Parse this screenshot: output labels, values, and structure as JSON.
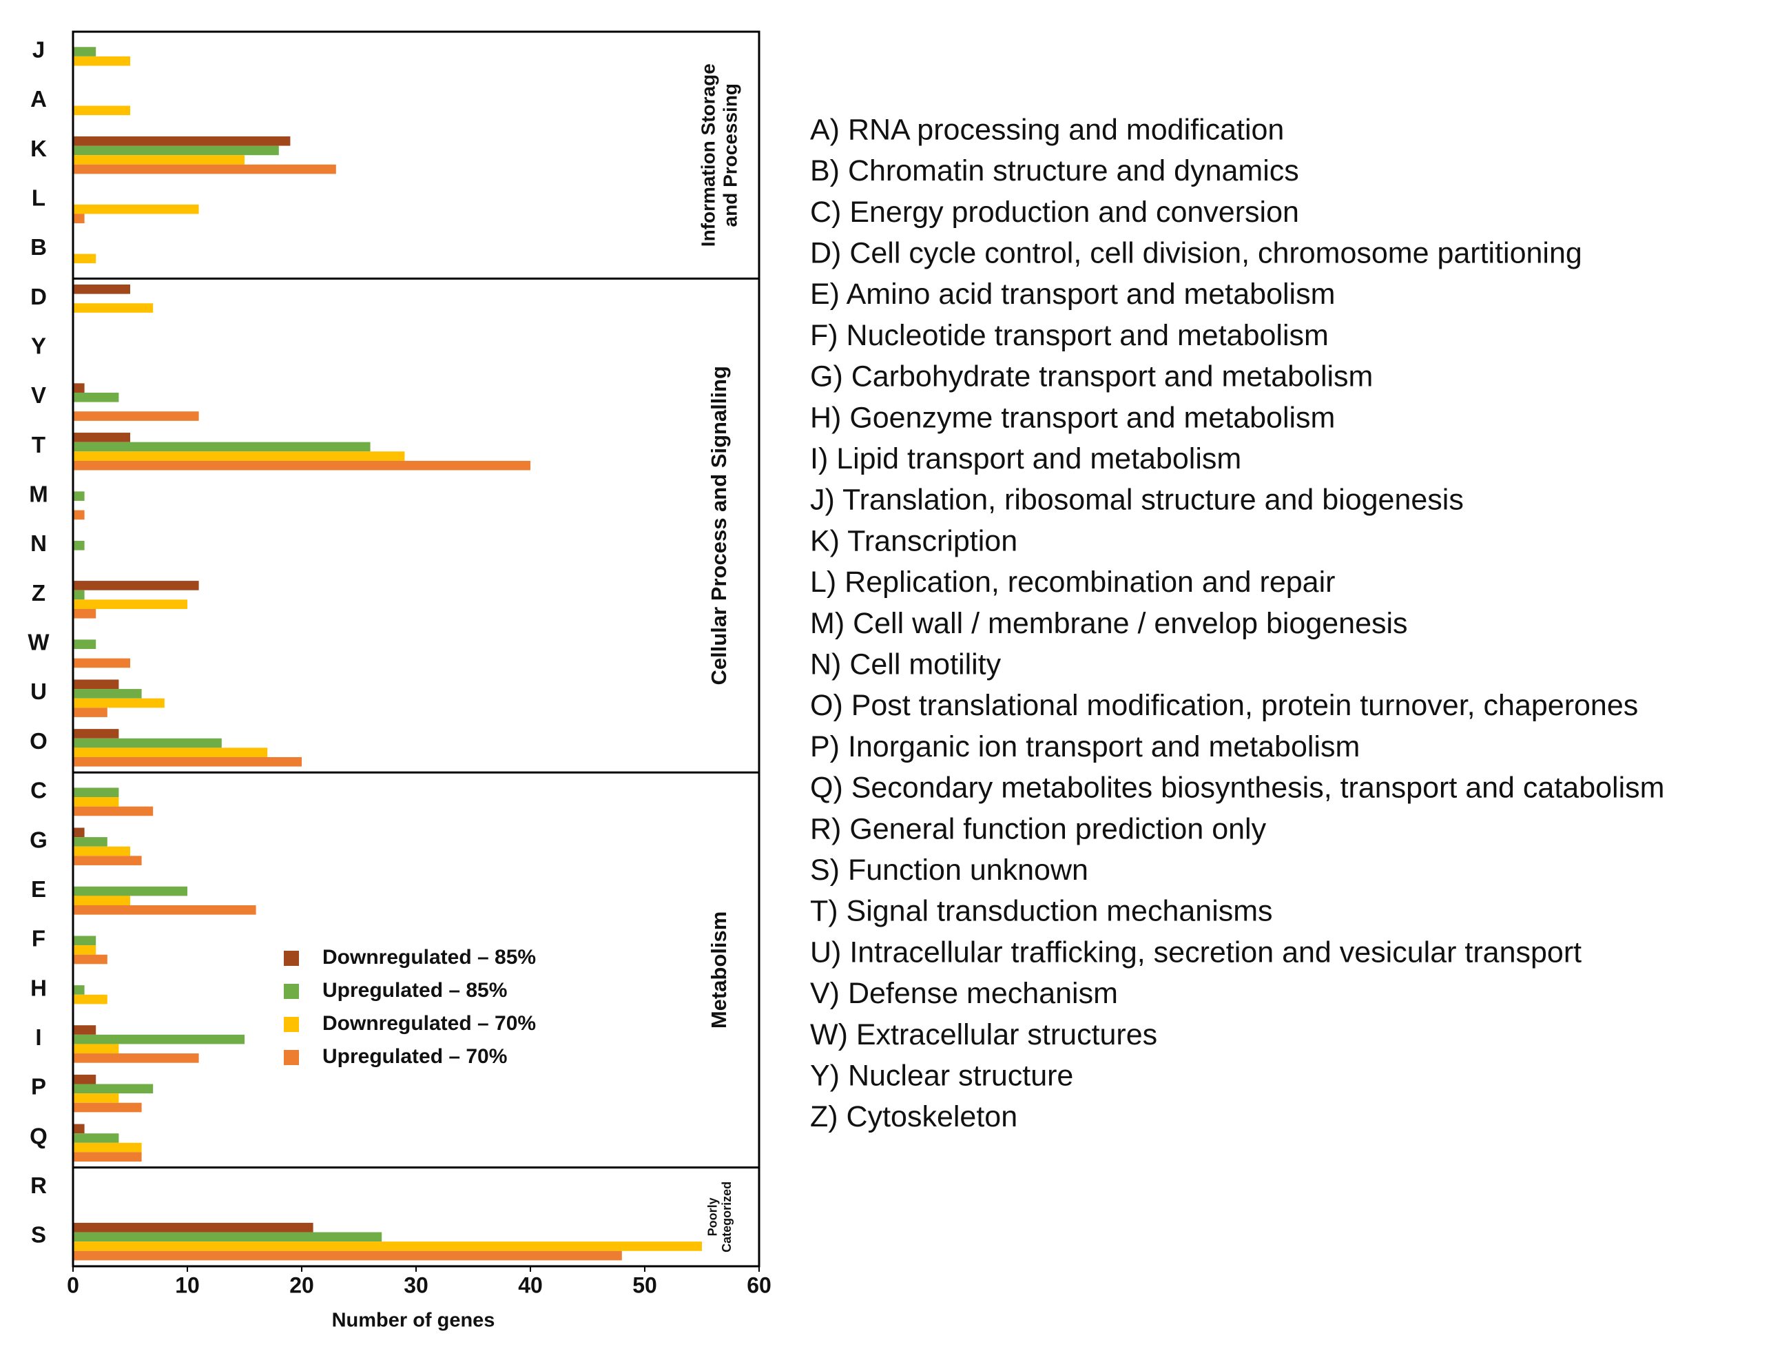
{
  "chart_data": {
    "type": "barh",
    "x_label": "Number of genes",
    "categories": [
      "J",
      "A",
      "K",
      "L",
      "B",
      "D",
      "Y",
      "V",
      "T",
      "M",
      "N",
      "Z",
      "W",
      "U",
      "O",
      "C",
      "G",
      "E",
      "F",
      "H",
      "I",
      "P",
      "Q",
      "R",
      "S"
    ],
    "series": [
      {
        "name": "Downregulated – 85%",
        "color": "#a0471c",
        "values": [
          0,
          0,
          19,
          0,
          0,
          5,
          0,
          1,
          5,
          0,
          0,
          11,
          0,
          4,
          4,
          0,
          1,
          0,
          0,
          0,
          2,
          2,
          1,
          0,
          21
        ]
      },
      {
        "name": "Upregulated – 85%",
        "color": "#70ad47",
        "values": [
          2,
          0,
          18,
          0,
          0,
          0,
          0,
          4,
          26,
          1,
          1,
          1,
          2,
          6,
          13,
          4,
          3,
          10,
          2,
          1,
          15,
          7,
          4,
          0,
          27
        ]
      },
      {
        "name": "Downregulated – 70%",
        "color": "#ffc000",
        "values": [
          5,
          5,
          15,
          11,
          2,
          7,
          0,
          0,
          29,
          0,
          0,
          10,
          0,
          8,
          17,
          4,
          5,
          5,
          2,
          3,
          4,
          4,
          6,
          0,
          55
        ]
      },
      {
        "name": "Upregulated – 70%",
        "color": "#ed7d31",
        "values": [
          0,
          0,
          23,
          1,
          0,
          0,
          0,
          11,
          40,
          1,
          0,
          2,
          5,
          3,
          20,
          7,
          6,
          16,
          3,
          0,
          11,
          6,
          6,
          0,
          48
        ]
      }
    ],
    "groups": [
      {
        "lines": [
          "Information  Storage",
          "and Processing"
        ],
        "first": "J"
      },
      {
        "lines": [
          "Cellular Process and Signalling"
        ],
        "first": "D"
      },
      {
        "lines": [
          "Metabolism"
        ],
        "first": "C"
      },
      {
        "lines": [
          "Poorly",
          "Categorized"
        ],
        "first": "R"
      }
    ],
    "xlim": [
      0,
      60
    ],
    "xticks": [
      0,
      10,
      20,
      30,
      40,
      50,
      60
    ],
    "descriptions": [
      "A) RNA processing and modification",
      "B) Chromatin structure and dynamics",
      "C) Energy production and conversion",
      "D) Cell cycle control, cell division, chromosome partitioning",
      "E) Amino acid transport and metabolism",
      "F) Nucleotide transport and metabolism",
      "G) Carbohydrate transport and metabolism",
      "H) Goenzyme transport and metabolism",
      "I) Lipid transport and metabolism",
      "J) Translation, ribosomal structure and biogenesis",
      "K) Transcription",
      "L) Replication, recombination and repair",
      "M) Cell wall / membrane / envelop biogenesis",
      "N) Cell motility",
      "O) Post translational modification, protein turnover, chaperones",
      "P) Inorganic ion transport and metabolism",
      "Q) Secondary metabolites biosynthesis, transport and catabolism",
      "R) General function prediction only",
      "S) Function unknown",
      "T) Signal transduction mechanisms",
      "U) Intracellular trafficking, secretion and vesicular transport",
      "V) Defense mechanism",
      "W) Extracellular structures",
      "Y) Nuclear structure",
      "Z) Cytoskeleton"
    ]
  }
}
